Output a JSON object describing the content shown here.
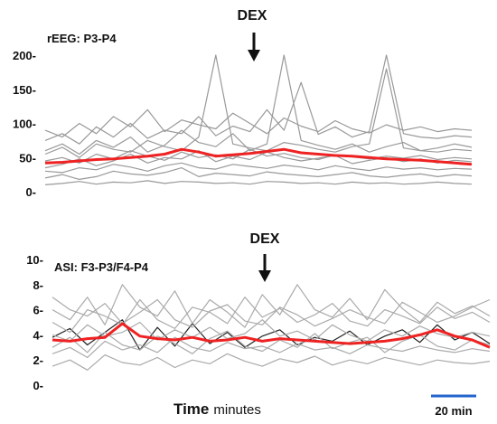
{
  "chart_data": [
    {
      "type": "line",
      "panel_label": "rEEG: P3-P4",
      "annotation": "DEX",
      "yticks": [
        "200-",
        "150-",
        "100-",
        "50-",
        "0-"
      ],
      "ytick_values": [
        200,
        150,
        100,
        50,
        0
      ],
      "ylim": [
        0,
        200
      ],
      "x": [
        0,
        0.04,
        0.08,
        0.12,
        0.16,
        0.2,
        0.24,
        0.28,
        0.32,
        0.36,
        0.4,
        0.44,
        0.48,
        0.52,
        0.56,
        0.6,
        0.64,
        0.68,
        0.72,
        0.76,
        0.8,
        0.84,
        0.88,
        0.92,
        0.96,
        1.0
      ],
      "series": [
        {
          "role": "mean",
          "color": "#ee2222",
          "values": [
            42,
            43,
            45,
            47,
            48,
            50,
            52,
            55,
            62,
            58,
            52,
            54,
            56,
            59,
            62,
            57,
            55,
            53,
            52,
            50,
            48,
            47,
            46,
            44,
            42,
            40
          ]
        },
        {
          "role": "subject",
          "color": "#999999",
          "values": [
            20,
            25,
            18,
            22,
            30,
            26,
            24,
            28,
            35,
            22,
            27,
            25,
            23,
            29,
            26,
            24,
            22,
            25,
            28,
            23,
            21,
            24,
            26,
            22,
            25,
            23
          ]
        },
        {
          "role": "subject",
          "color": "#999999",
          "values": [
            60,
            70,
            55,
            75,
            65,
            80,
            58,
            68,
            90,
            72,
            66,
            85,
            60,
            70,
            200,
            75,
            68,
            62,
            70,
            58,
            66,
            72,
            60,
            64,
            70,
            65
          ]
        },
        {
          "role": "subject",
          "color": "#999999",
          "values": [
            35,
            40,
            48,
            38,
            45,
            55,
            42,
            50,
            48,
            60,
            44,
            52,
            47,
            58,
            50,
            45,
            49,
            53,
            41,
            46,
            50,
            44,
            48,
            42,
            46,
            44
          ]
        },
        {
          "role": "subject",
          "color": "#999999",
          "values": [
            90,
            80,
            100,
            85,
            110,
            95,
            120,
            88,
            105,
            98,
            92,
            115,
            100,
            85,
            108,
            96,
            88,
            104,
            92,
            86,
            98,
            90,
            95,
            88,
            92,
            90
          ]
        },
        {
          "role": "subject",
          "color": "#999999",
          "values": [
            10,
            12,
            15,
            11,
            14,
            13,
            16,
            12,
            15,
            14,
            12,
            13,
            11,
            15,
            14,
            12,
            13,
            11,
            14,
            12,
            13,
            11,
            12,
            14,
            12,
            11
          ]
        },
        {
          "role": "subject",
          "color": "#999999",
          "values": [
            55,
            65,
            50,
            70,
            62,
            58,
            75,
            66,
            60,
            80,
            200,
            70,
            64,
            60,
            72,
            68,
            62,
            58,
            66,
            70,
            180,
            64,
            60,
            58,
            62,
            60
          ]
        },
        {
          "role": "subject",
          "color": "#999999",
          "values": [
            30,
            28,
            35,
            32,
            40,
            36,
            30,
            38,
            42,
            35,
            33,
            40,
            37,
            34,
            39,
            36,
            32,
            38,
            34,
            31,
            36,
            33,
            35,
            32,
            34,
            33
          ]
        },
        {
          "role": "subject",
          "color": "#999999",
          "values": [
            75,
            85,
            70,
            95,
            80,
            100,
            78,
            90,
            85,
            110,
            82,
            96,
            88,
            120,
            90,
            160,
            84,
            95,
            80,
            88,
            200,
            85,
            80,
            78,
            82,
            80
          ]
        },
        {
          "role": "subject",
          "color": "#999999",
          "values": [
            45,
            50,
            42,
            55,
            48,
            60,
            52,
            46,
            58,
            50,
            54,
            48,
            62,
            52,
            56,
            50,
            47,
            54,
            51,
            48,
            52,
            49,
            53,
            47,
            50,
            48
          ]
        }
      ]
    },
    {
      "type": "line",
      "panel_label": "ASI: F3-P3/F4-P4",
      "annotation": "DEX",
      "yticks": [
        "10-",
        "8-",
        "6-",
        "4-",
        "2-",
        "0-"
      ],
      "ytick_values": [
        10,
        8,
        6,
        4,
        2,
        0
      ],
      "ylim": [
        0,
        10
      ],
      "x": [
        0,
        0.04,
        0.08,
        0.12,
        0.16,
        0.2,
        0.24,
        0.28,
        0.32,
        0.36,
        0.4,
        0.44,
        0.48,
        0.52,
        0.56,
        0.6,
        0.64,
        0.68,
        0.72,
        0.76,
        0.8,
        0.84,
        0.88,
        0.92,
        0.96,
        1.0
      ],
      "series": [
        {
          "role": "mean",
          "color": "#ee2222",
          "values": [
            3.6,
            3.5,
            3.7,
            3.8,
            4.9,
            3.9,
            3.7,
            3.6,
            3.8,
            3.5,
            3.6,
            3.8,
            3.5,
            3.7,
            3.6,
            3.5,
            3.4,
            3.3,
            3.4,
            3.5,
            3.7,
            4.0,
            4.4,
            3.9,
            3.6,
            3.0
          ]
        },
        {
          "role": "subject",
          "color": "#222222",
          "values": [
            3.8,
            4.5,
            3.2,
            4.2,
            5.2,
            2.8,
            4.6,
            3.1,
            4.9,
            3.3,
            4.2,
            3.0,
            3.9,
            4.4,
            3.2,
            3.8,
            3.5,
            4.3,
            3.2,
            3.9,
            4.4,
            3.4,
            4.8,
            3.6,
            4.2,
            3.3
          ]
        },
        {
          "role": "subject",
          "color": "#aaaaaa",
          "values": [
            2.5,
            3.0,
            2.2,
            3.5,
            2.8,
            3.2,
            2.6,
            3.8,
            3.0,
            2.7,
            3.4,
            2.9,
            3.1,
            2.6,
            3.3,
            2.8,
            3.0,
            2.5,
            3.2,
            2.9,
            2.7,
            3.1,
            2.8,
            2.6,
            2.9,
            2.7
          ]
        },
        {
          "role": "subject",
          "color": "#aaaaaa",
          "values": [
            5.0,
            4.2,
            6.0,
            5.5,
            4.8,
            6.8,
            5.2,
            4.5,
            6.2,
            5.8,
            4.9,
            7.0,
            5.4,
            6.1,
            5.0,
            5.6,
            6.5,
            5.1,
            4.7,
            6.0,
            5.5,
            4.9,
            6.2,
            5.3,
            5.8,
            5.0
          ]
        },
        {
          "role": "subject",
          "color": "#aaaaaa",
          "values": [
            1.5,
            2.0,
            1.2,
            2.4,
            1.8,
            1.6,
            2.2,
            1.4,
            2.0,
            1.7,
            2.5,
            1.9,
            1.5,
            2.1,
            1.8,
            2.3,
            1.6,
            2.0,
            1.7,
            2.2,
            1.9,
            1.6,
            2.0,
            1.8,
            1.7,
            1.9
          ]
        },
        {
          "role": "subject",
          "color": "#aaaaaa",
          "values": [
            6.0,
            5.2,
            7.0,
            4.8,
            8.0,
            6.2,
            5.5,
            7.5,
            4.9,
            6.8,
            5.8,
            4.6,
            7.2,
            5.6,
            8.0,
            6.0,
            5.4,
            6.9,
            5.2,
            7.6,
            6.1,
            5.0,
            6.6,
            5.7,
            6.3,
            5.5
          ]
        },
        {
          "role": "subject",
          "color": "#aaaaaa",
          "values": [
            4.0,
            3.5,
            4.8,
            3.9,
            4.2,
            5.0,
            3.6,
            4.4,
            3.8,
            4.6,
            3.7,
            4.1,
            5.2,
            3.9,
            4.3,
            3.6,
            4.8,
            4.0,
            3.5,
            4.4,
            3.9,
            4.7,
            4.1,
            3.8,
            4.2,
            3.9
          ]
        },
        {
          "role": "subject",
          "color": "#aaaaaa",
          "values": [
            3.0,
            3.8,
            2.6,
            4.2,
            3.2,
            2.8,
            3.9,
            3.3,
            2.5,
            3.7,
            4.3,
            3.1,
            2.7,
            3.6,
            3.0,
            4.1,
            2.9,
            3.4,
            3.8,
            2.6,
            3.5,
            4.0,
            3.1,
            2.8,
            3.6,
            3.2
          ]
        },
        {
          "role": "subject",
          "color": "#aaaaaa",
          "values": [
            7.0,
            6.0,
            5.5,
            6.5,
            4.9,
            5.8,
            6.8,
            5.2,
            4.6,
            5.9,
            6.4,
            5.1,
            4.8,
            6.2,
            5.6,
            4.7,
            5.3,
            6.0,
            5.4,
            4.9,
            6.6,
            5.8,
            5.0,
            5.5,
            6.2,
            6.8
          ]
        }
      ]
    }
  ],
  "footer": {
    "xlabel_bold": "Time",
    "xlabel_rest": "minutes",
    "scale_bar_label": "20 min",
    "scale_bar_color": "#2266cc"
  }
}
